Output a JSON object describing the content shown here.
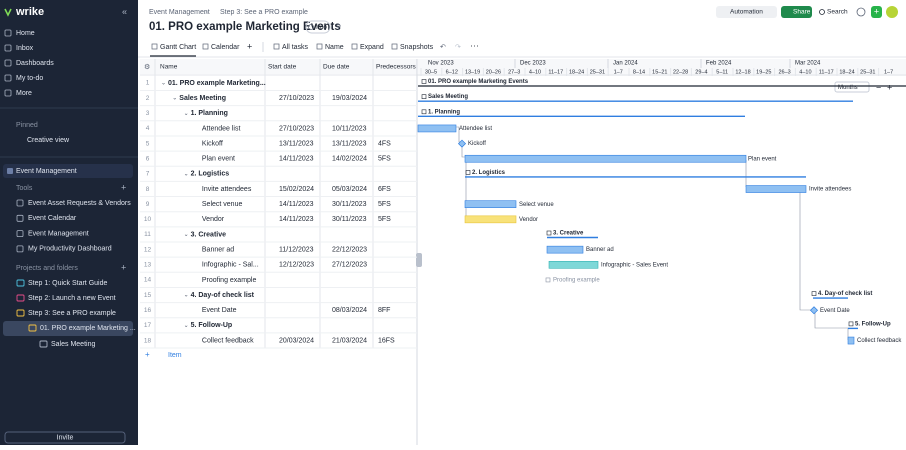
{
  "sidebar": {
    "logo": "wrike",
    "nav": [
      "Home",
      "Inbox",
      "Dashboards",
      "My to-do",
      "More"
    ],
    "pinned_title": "Pinned",
    "pinned": [
      "Creative view"
    ],
    "space": "Event Management",
    "tools_title": "Tools",
    "tools": [
      "Event Asset Requests & Vendors",
      "Event Calendar",
      "Event Management",
      "My Productivity Dashboard"
    ],
    "projects_title": "Projects and folders",
    "projects": [
      "Step 1: Quick Start Guide",
      "Step 2: Launch a new Event",
      "Step 3: See a PRO example",
      "01. PRO example Marketing ...",
      "Sales Meeting"
    ],
    "invite": "Invite"
  },
  "header": {
    "breadcrumb": [
      "Event Management",
      "Step 3: See a PRO example"
    ],
    "title": "01. PRO example Marketing Events",
    "info": "Info",
    "automation": "Automation",
    "share": "Share",
    "search": "Search"
  },
  "toolbar": {
    "tabs": [
      "Gantt Chart",
      "Calendar"
    ],
    "actions": [
      "All tasks",
      "Name",
      "Expand",
      "Snapshots"
    ]
  },
  "table": {
    "columns": [
      "Name",
      "Start date",
      "Due date",
      "Predecessors"
    ],
    "rows": [
      {
        "n": 1,
        "name": "01. PRO example Marketing..."
      },
      {
        "n": 2,
        "name": "Sales Meeting",
        "start": "27/10/2023",
        "due": "19/03/2024"
      },
      {
        "n": 3,
        "name": "1. Planning"
      },
      {
        "n": 4,
        "name": "Attendee list",
        "start": "27/10/2023",
        "due": "10/11/2023"
      },
      {
        "n": 5,
        "name": "Kickoff",
        "start": "13/11/2023",
        "due": "13/11/2023",
        "pred": "4FS"
      },
      {
        "n": 6,
        "name": "Plan event",
        "start": "14/11/2023",
        "due": "14/02/2024",
        "pred": "5FS"
      },
      {
        "n": 7,
        "name": "2. Logistics"
      },
      {
        "n": 8,
        "name": "Invite attendees",
        "start": "15/02/2024",
        "due": "05/03/2024",
        "pred": "6FS"
      },
      {
        "n": 9,
        "name": "Select venue",
        "start": "14/11/2023",
        "due": "30/11/2023",
        "pred": "5FS"
      },
      {
        "n": 10,
        "name": "Vendor",
        "start": "14/11/2023",
        "due": "30/11/2023",
        "pred": "5FS"
      },
      {
        "n": 11,
        "name": "3. Creative"
      },
      {
        "n": 12,
        "name": "Banner ad",
        "start": "11/12/2023",
        "due": "22/12/2023"
      },
      {
        "n": 13,
        "name": "Infographic - Sal...",
        "start": "12/12/2023",
        "due": "27/12/2023"
      },
      {
        "n": 14,
        "name": "Proofing example"
      },
      {
        "n": 15,
        "name": "4. Day-of check list"
      },
      {
        "n": 16,
        "name": "Event Date",
        "due": "08/03/2024",
        "pred": "8FF"
      },
      {
        "n": 17,
        "name": "5. Follow-Up"
      },
      {
        "n": 18,
        "name": "Collect feedback",
        "start": "20/03/2024",
        "due": "21/03/2024",
        "pred": "16FS"
      }
    ],
    "add_item": "Item"
  },
  "gantt": {
    "months": [
      "Nov 2023",
      "Dec 2023",
      "Jan 2024",
      "Feb 2024",
      "Mar 2024"
    ],
    "weeks": [
      "30–5",
      "6–12",
      "13–19",
      "20–26",
      "27–3",
      "4–10",
      "11–17",
      "18–24",
      "25–31",
      "1–7",
      "8–14",
      "15–21",
      "22–28",
      "29–4",
      "5–11",
      "12–18",
      "19–25",
      "26–3",
      "4–10",
      "11–17",
      "18–24",
      "25–31",
      "1–7"
    ],
    "zoom": "Months",
    "labels": [
      "01. PRO example Marketing Events",
      "Sales Meeting",
      "1. Planning",
      "Attendee list",
      "Kickoff",
      "Plan event",
      "2. Logistics",
      "Invite attendees",
      "Select venue",
      "Vendor",
      "3. Creative",
      "Banner ad",
      "Infographic -  Sales Event",
      "Proofing example",
      "4. Day-of check list",
      "Event Date",
      "5. Follow-Up",
      "Collect feedback"
    ]
  }
}
